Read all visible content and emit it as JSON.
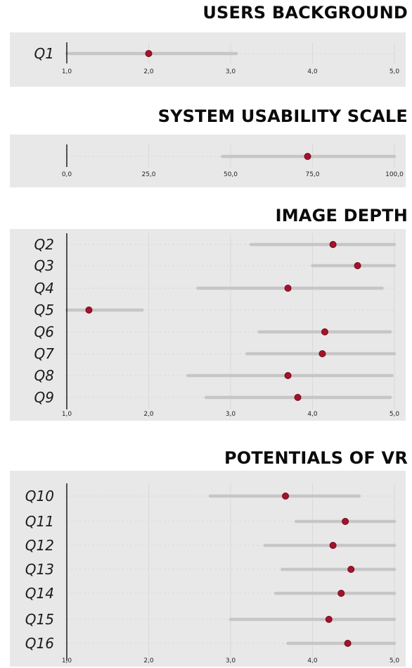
{
  "chart_data": [
    {
      "type": "dot-range",
      "title": "USERS BACKGROUND",
      "x_ticks": [
        "1,0",
        "2,0",
        "3,0",
        "4,0",
        "5,0"
      ],
      "xlim": [
        1,
        5
      ],
      "rows": [
        {
          "label": "Q1",
          "min": 1.0,
          "max": 3.07,
          "value": 2.0
        }
      ]
    },
    {
      "type": "dot-range",
      "title": "SYSTEM USABILITY SCALE",
      "x_ticks": [
        "0,0",
        "25,0",
        "50,0",
        "75,0",
        "100,0"
      ],
      "xlim": [
        0,
        100
      ],
      "rows": [
        {
          "label": "",
          "min": 47.5,
          "max": 100.0,
          "value": 73.5
        }
      ]
    },
    {
      "type": "dot-range",
      "title": "IMAGE DEPTH",
      "x_ticks": [
        "1,0",
        "2,0",
        "3,0",
        "4,0",
        "5,0"
      ],
      "xlim": [
        1,
        5
      ],
      "rows": [
        {
          "label": "Q2",
          "min": 3.25,
          "max": 5.0,
          "value": 4.25
        },
        {
          "label": "Q3",
          "min": 4.0,
          "max": 5.0,
          "value": 4.55
        },
        {
          "label": "Q4",
          "min": 2.6,
          "max": 4.85,
          "value": 3.7
        },
        {
          "label": "Q5",
          "min": 1.0,
          "max": 1.92,
          "value": 1.27
        },
        {
          "label": "Q6",
          "min": 3.35,
          "max": 4.95,
          "value": 4.15
        },
        {
          "label": "Q7",
          "min": 3.2,
          "max": 5.0,
          "value": 4.12
        },
        {
          "label": "Q8",
          "min": 2.48,
          "max": 4.97,
          "value": 3.7
        },
        {
          "label": "Q9",
          "min": 2.7,
          "max": 4.95,
          "value": 3.82
        }
      ]
    },
    {
      "type": "dot-range",
      "title": "POTENTIALS OF VR",
      "x_ticks": [
        "1,0",
        "2,0",
        "3,0",
        "4,0",
        "5,0"
      ],
      "xlim": [
        1,
        5
      ],
      "rows": [
        {
          "label": "Q10",
          "min": 2.75,
          "max": 4.57,
          "value": 3.67
        },
        {
          "label": "Q11",
          "min": 3.8,
          "max": 5.0,
          "value": 4.4
        },
        {
          "label": "Q12",
          "min": 3.42,
          "max": 5.0,
          "value": 4.25
        },
        {
          "label": "Q13",
          "min": 3.63,
          "max": 5.0,
          "value": 4.47
        },
        {
          "label": "Q14",
          "min": 3.55,
          "max": 5.0,
          "value": 4.35
        },
        {
          "label": "Q15",
          "min": 3.0,
          "max": 5.0,
          "value": 4.2
        },
        {
          "label": "Q16",
          "min": 3.7,
          "max": 5.0,
          "value": 4.43
        }
      ]
    }
  ]
}
